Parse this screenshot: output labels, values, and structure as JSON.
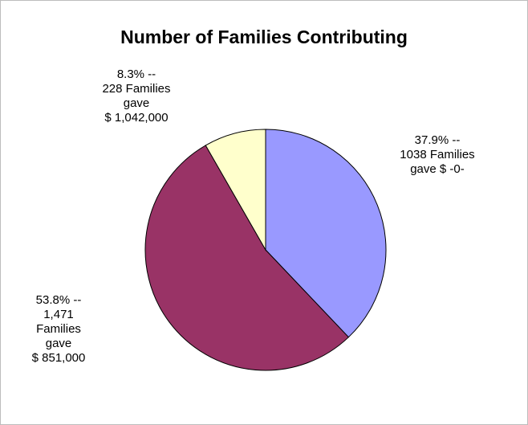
{
  "chart_data": {
    "type": "pie",
    "title": "Number of Families Contributing",
    "slices": [
      {
        "value": 37.9,
        "color": "#9999ff",
        "label_lines": [
          "37.9% --",
          "1038 Families",
          "gave $ -0-"
        ]
      },
      {
        "value": 53.8,
        "color": "#993366",
        "label_lines": [
          "53.8% --",
          "1,471",
          "Families",
          "gave",
          "$ 851,000"
        ]
      },
      {
        "value": 8.3,
        "color": "#ffffcc",
        "label_lines": [
          "8.3% --",
          "228 Families",
          "gave",
          "$ 1,042,000"
        ]
      }
    ]
  }
}
